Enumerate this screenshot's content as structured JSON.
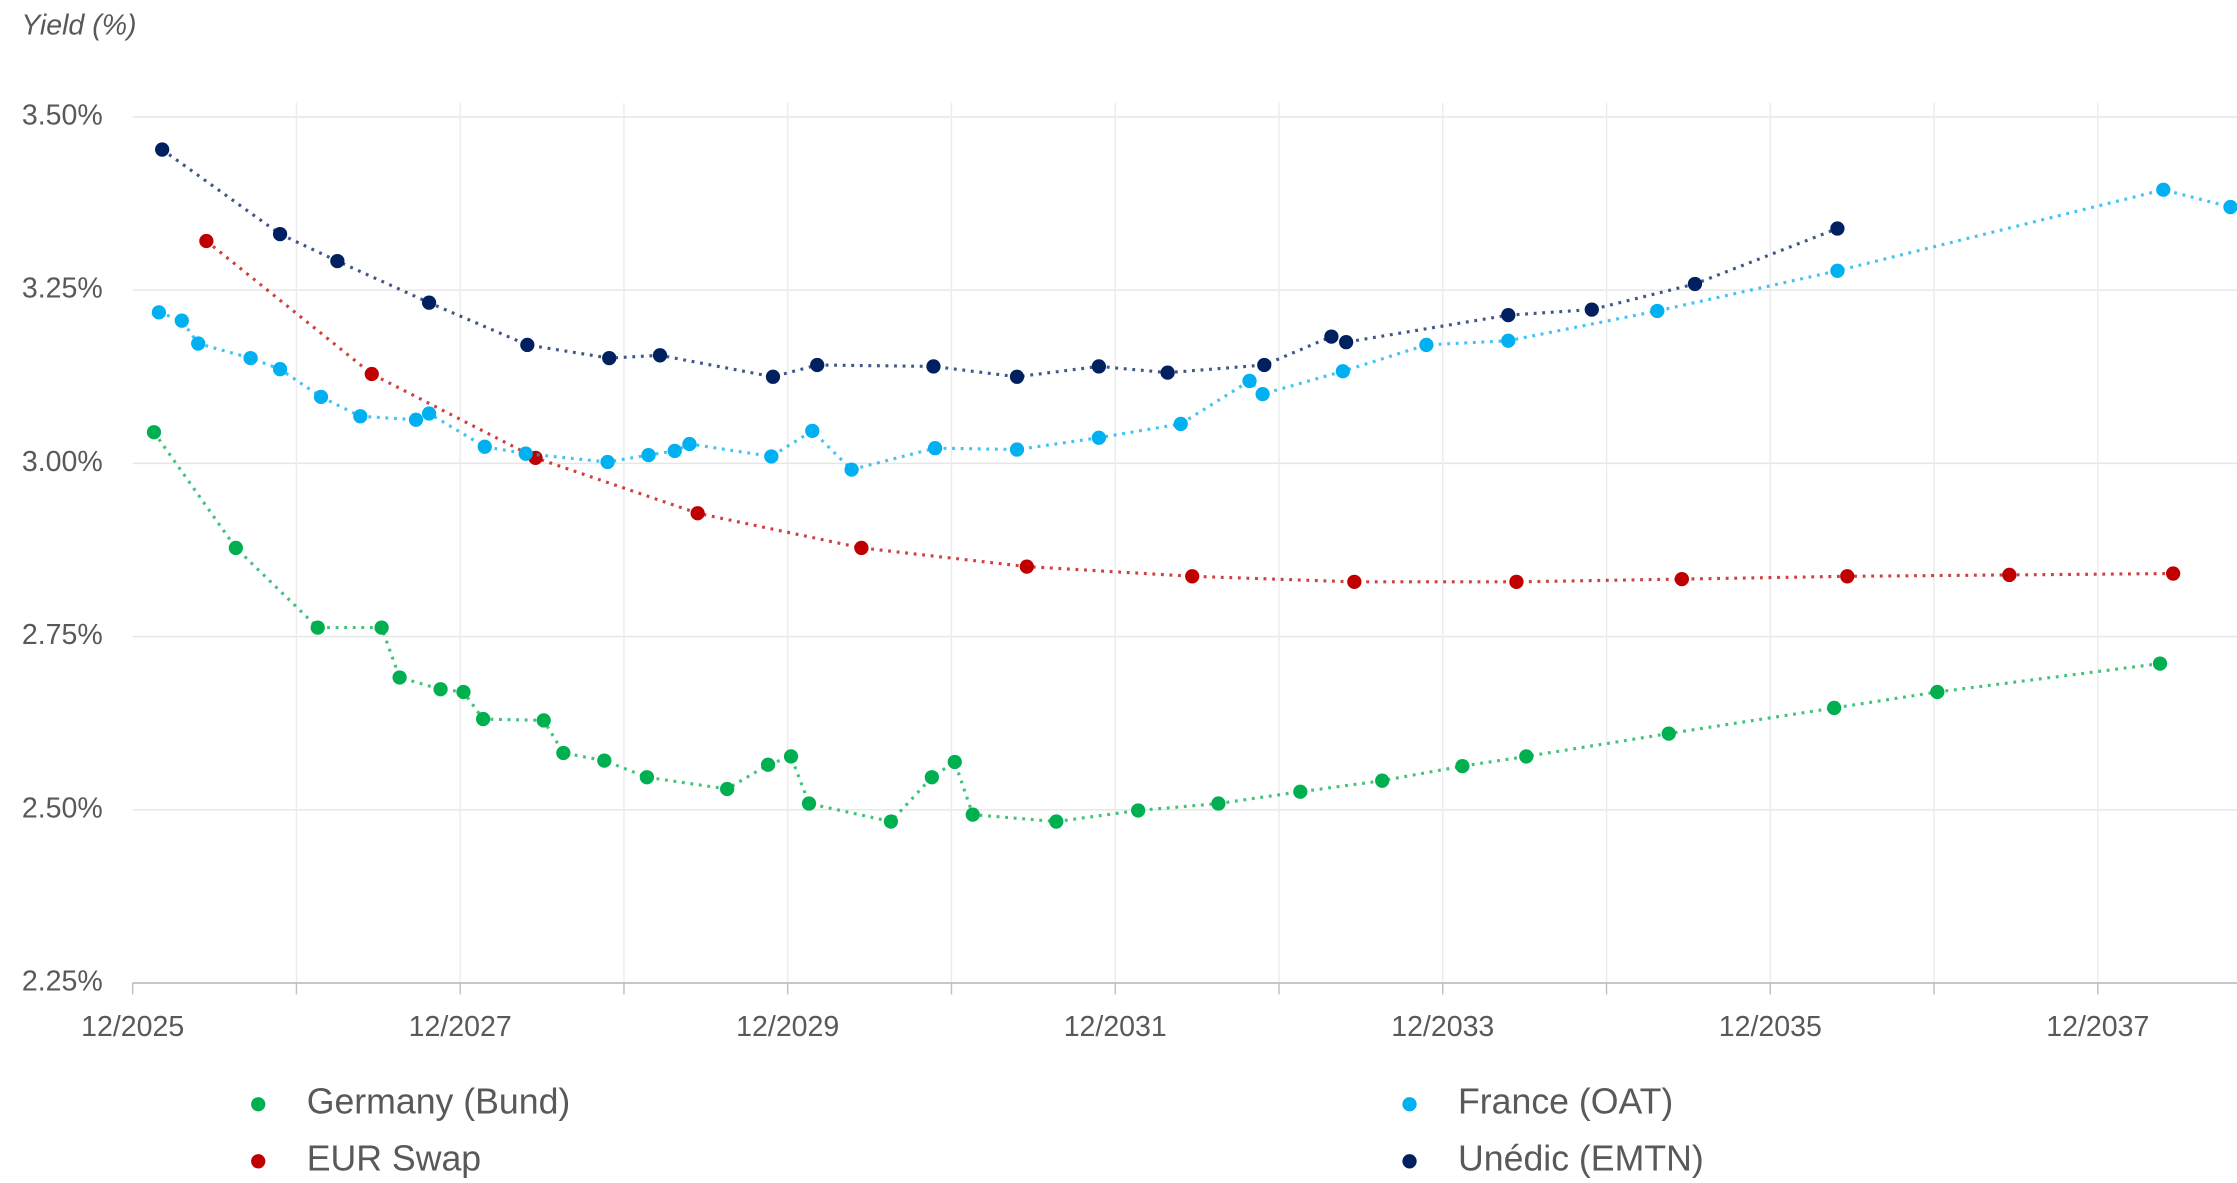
{
  "chart_data": {
    "type": "scatter",
    "y_label": "Yield (%)",
    "xlim": [
      2025.92,
      2038.77
    ],
    "ylim": [
      2.25,
      3.5
    ],
    "xticks": [
      {
        "value": 2025.92,
        "label": "12/2025"
      },
      {
        "value": 2027.92,
        "label": "12/2027"
      },
      {
        "value": 2029.92,
        "label": "12/2029"
      },
      {
        "value": 2031.92,
        "label": "12/2031"
      },
      {
        "value": 2033.92,
        "label": "12/2033"
      },
      {
        "value": 2035.92,
        "label": "12/2035"
      },
      {
        "value": 2037.92,
        "label": "12/2037"
      }
    ],
    "xminor_ticks": [
      2026.92,
      2028.92,
      2030.92,
      2032.92,
      2034.92,
      2036.92,
      2038.92
    ],
    "yticks": [
      {
        "value": 2.25,
        "label": "2.25%"
      },
      {
        "value": 2.5,
        "label": "2.50%"
      },
      {
        "value": 2.75,
        "label": "2.75%"
      },
      {
        "value": 3.0,
        "label": "3.00%"
      },
      {
        "value": 3.25,
        "label": "3.25%"
      },
      {
        "value": 3.5,
        "label": "3.50%"
      }
    ],
    "grid": true,
    "legend": "bottom",
    "series": [
      {
        "name": "Germany (Bund)",
        "color": "#00b050",
        "x": [
          2026.05,
          2026.55,
          2027.05,
          2027.44,
          2027.55,
          2027.8,
          2027.94,
          2028.06,
          2028.43,
          2028.55,
          2028.8,
          2029.06,
          2029.55,
          2029.8,
          2029.94,
          2030.05,
          2030.55,
          2030.8,
          2030.94,
          2031.05,
          2031.56,
          2032.06,
          2032.55,
          2033.05,
          2033.55,
          2034.04,
          2034.43,
          2035.3,
          2036.31,
          2036.94,
          2038.3
        ],
        "values": [
          3.045,
          2.878,
          2.763,
          2.763,
          2.691,
          2.674,
          2.67,
          2.631,
          2.629,
          2.582,
          2.571,
          2.547,
          2.53,
          2.565,
          2.577,
          2.509,
          2.483,
          2.547,
          2.569,
          2.493,
          2.483,
          2.499,
          2.509,
          2.526,
          2.542,
          2.563,
          2.577,
          2.61,
          2.647,
          2.67,
          2.711
        ]
      },
      {
        "name": "EUR Swap",
        "color": "#c00000",
        "x": [
          2026.37,
          2027.38,
          2028.38,
          2029.37,
          2030.37,
          2031.38,
          2032.39,
          2033.38,
          2034.37,
          2035.38,
          2036.39,
          2037.38,
          2038.38
        ],
        "values": [
          3.321,
          3.129,
          3.008,
          2.928,
          2.878,
          2.851,
          2.837,
          2.829,
          2.829,
          2.833,
          2.837,
          2.839,
          2.841
        ]
      },
      {
        "name": "France (OAT)",
        "color": "#00b0f0",
        "x": [
          2026.08,
          2026.22,
          2026.32,
          2026.64,
          2026.82,
          2027.07,
          2027.31,
          2027.65,
          2027.73,
          2028.07,
          2028.32,
          2028.82,
          2029.07,
          2029.23,
          2029.32,
          2029.82,
          2030.07,
          2030.31,
          2030.82,
          2031.32,
          2031.82,
          2032.32,
          2032.74,
          2032.82,
          2033.31,
          2033.82,
          2034.32,
          2035.23,
          2036.33,
          2038.32,
          2038.73
        ],
        "values": [
          3.218,
          3.206,
          3.173,
          3.152,
          3.136,
          3.096,
          3.068,
          3.063,
          3.072,
          3.024,
          3.014,
          3.002,
          3.012,
          3.018,
          3.028,
          3.01,
          3.047,
          2.991,
          3.022,
          3.02,
          3.037,
          3.057,
          3.119,
          3.1,
          3.133,
          3.171,
          3.177,
          3.22,
          3.278,
          3.395,
          3.37
        ]
      },
      {
        "name": "Unédic (EMTN)",
        "color": "#002060",
        "x": [
          2026.1,
          2026.82,
          2027.17,
          2027.73,
          2028.33,
          2028.83,
          2029.14,
          2029.83,
          2030.1,
          2030.81,
          2031.32,
          2031.82,
          2032.24,
          2032.83,
          2033.24,
          2033.33,
          2034.32,
          2034.83,
          2035.46,
          2036.33
        ],
        "values": [
          3.453,
          3.331,
          3.292,
          3.232,
          3.171,
          3.152,
          3.156,
          3.125,
          3.142,
          3.14,
          3.125,
          3.14,
          3.131,
          3.142,
          3.183,
          3.175,
          3.214,
          3.222,
          3.259,
          3.339
        ]
      }
    ]
  }
}
